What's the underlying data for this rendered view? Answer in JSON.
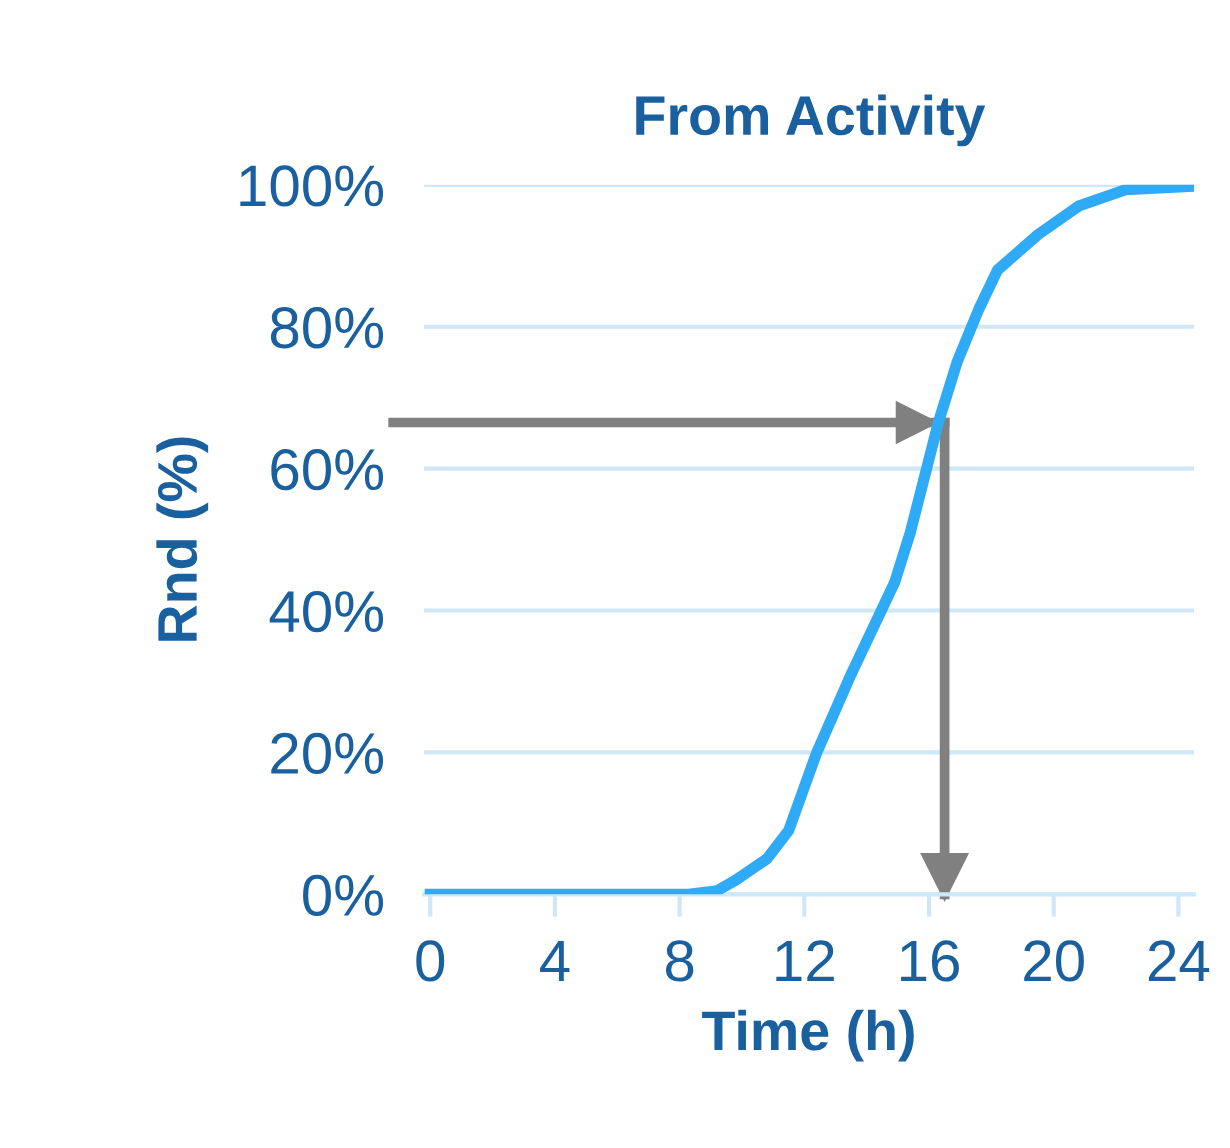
{
  "chart_data": {
    "type": "line",
    "title": "From Activity",
    "xlabel": "Time (h)",
    "ylabel": "Rnd (%)",
    "x": [
      0,
      8.3,
      9.2,
      9.8,
      10.8,
      11.5,
      12.4,
      13.5,
      14.9,
      15.4,
      16.3,
      16.9,
      17.6,
      18.2,
      19.5,
      20.8,
      22.3,
      24.5
    ],
    "series": [
      {
        "color": "#2eaaf7",
        "values": [
          0,
          0,
          0.5,
          2,
          5,
          9,
          20,
          31,
          44,
          51,
          66.5,
          75,
          82.5,
          88,
          93,
          97,
          99.3,
          99.8
        ]
      }
    ],
    "xlim": [
      -0.2,
      24.5
    ],
    "xticks": [
      0,
      4,
      8,
      12,
      16,
      20,
      24
    ],
    "ylim": [
      0,
      100
    ],
    "yticks": [
      {
        "value": 0,
        "label": "0%"
      },
      {
        "value": 20,
        "label": "20%"
      },
      {
        "value": 40,
        "label": "40%"
      },
      {
        "value": 60,
        "label": "60%"
      },
      {
        "value": 80,
        "label": "80%"
      },
      {
        "value": 100,
        "label": "100%"
      }
    ],
    "grid": "y",
    "legend": false,
    "marker": "none",
    "line_style": "solid",
    "ref_lines": [
      {
        "axis": "y",
        "value": 66.5,
        "color": "#808080"
      },
      {
        "axis": "x",
        "value": 16.5,
        "color": "#808080"
      }
    ]
  }
}
